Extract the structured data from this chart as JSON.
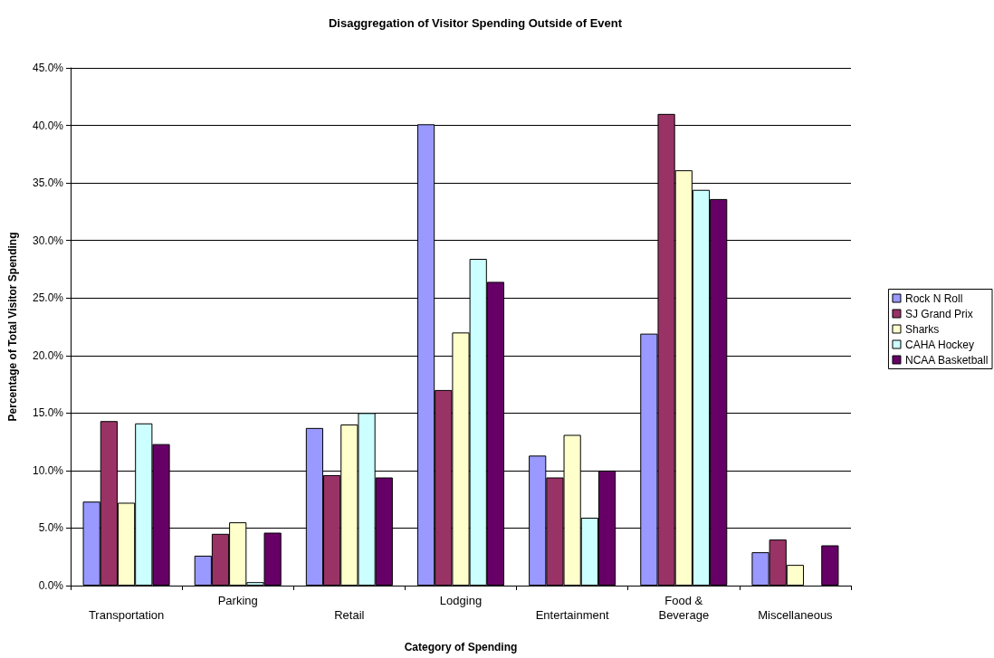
{
  "chart_data": {
    "type": "bar",
    "title": "Disaggregation of Visitor Spending Outside of Event",
    "xlabel": "Category of Spending",
    "ylabel": "Percentage of Total Visitor Spending",
    "categories": [
      "Transportation",
      "Parking",
      "Retail",
      "Lodging",
      "Entertainment",
      "Food & Beverage",
      "Miscellaneous"
    ],
    "series": [
      {
        "name": "Rock N Roll",
        "color": "#9999ff",
        "values": [
          7.3,
          2.6,
          13.7,
          40.1,
          11.3,
          21.9,
          2.9
        ]
      },
      {
        "name": "SJ Grand Prix",
        "color": "#993366",
        "values": [
          14.3,
          4.5,
          9.6,
          17.0,
          9.4,
          41.0,
          4.0
        ]
      },
      {
        "name": "Sharks",
        "color": "#ffffcc",
        "values": [
          7.2,
          5.5,
          14.0,
          22.0,
          13.1,
          36.1,
          1.8
        ]
      },
      {
        "name": "CAHA Hockey",
        "color": "#ccffff",
        "values": [
          14.1,
          0.3,
          15.0,
          28.4,
          5.9,
          34.4,
          null
        ]
      },
      {
        "name": "NCAA Basketball",
        "color": "#660066",
        "values": [
          12.3,
          4.6,
          9.4,
          26.4,
          10.0,
          33.6,
          3.5
        ]
      }
    ],
    "ylim": [
      0,
      45
    ],
    "yticks": [
      {
        "value": 0,
        "label": "0.0%"
      },
      {
        "value": 5,
        "label": "5.0%"
      },
      {
        "value": 10,
        "label": "10.0%"
      },
      {
        "value": 15,
        "label": "15.0%"
      },
      {
        "value": 20,
        "label": "20.0%"
      },
      {
        "value": 25,
        "label": "25.0%"
      },
      {
        "value": 30,
        "label": "30.0%"
      },
      {
        "value": 35,
        "label": "35.0%"
      },
      {
        "value": 40,
        "label": "40.0%"
      },
      {
        "value": 45,
        "label": "45.0%"
      }
    ],
    "grid": "y",
    "legend": "right"
  }
}
